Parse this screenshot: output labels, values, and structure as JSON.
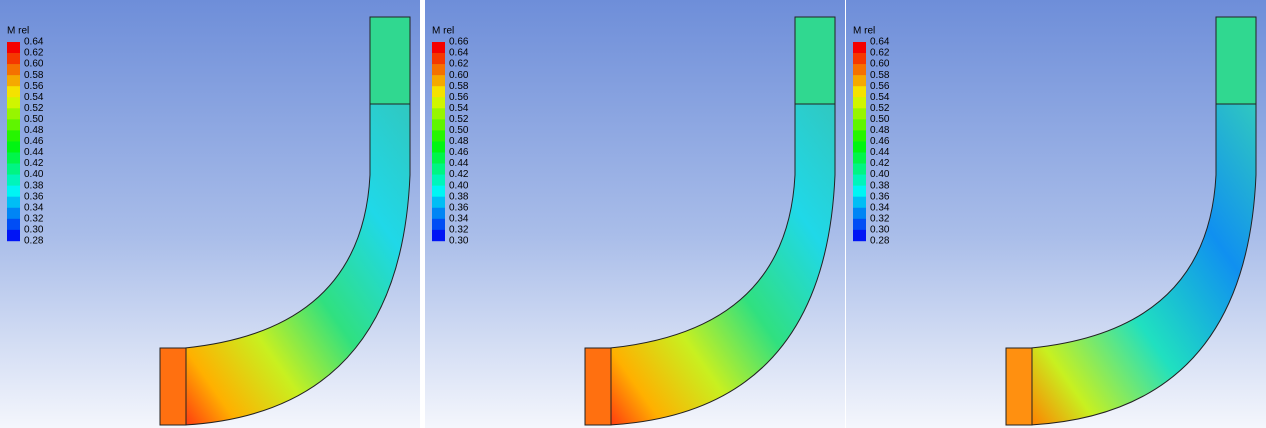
{
  "panels": [
    {
      "legend_title": "M rel",
      "legend_ticks": [
        "0.64",
        "0.62",
        "0.60",
        "0.58",
        "0.56",
        "0.54",
        "0.52",
        "0.50",
        "0.48",
        "0.46",
        "0.44",
        "0.42",
        "0.40",
        "0.38",
        "0.36",
        "0.34",
        "0.32",
        "0.30",
        "0.28"
      ]
    },
    {
      "legend_title": "M rel",
      "legend_ticks": [
        "0.66",
        "0.64",
        "0.62",
        "0.60",
        "0.58",
        "0.56",
        "0.54",
        "0.52",
        "0.50",
        "0.48",
        "0.46",
        "0.44",
        "0.42",
        "0.40",
        "0.38",
        "0.36",
        "0.34",
        "0.32",
        "0.30"
      ]
    },
    {
      "legend_title": "M rel",
      "legend_ticks": [
        "0.64",
        "0.62",
        "0.60",
        "0.58",
        "0.56",
        "0.54",
        "0.52",
        "0.50",
        "0.48",
        "0.46",
        "0.44",
        "0.42",
        "0.40",
        "0.38",
        "0.36",
        "0.34",
        "0.32",
        "0.30",
        "0.28"
      ]
    }
  ]
}
